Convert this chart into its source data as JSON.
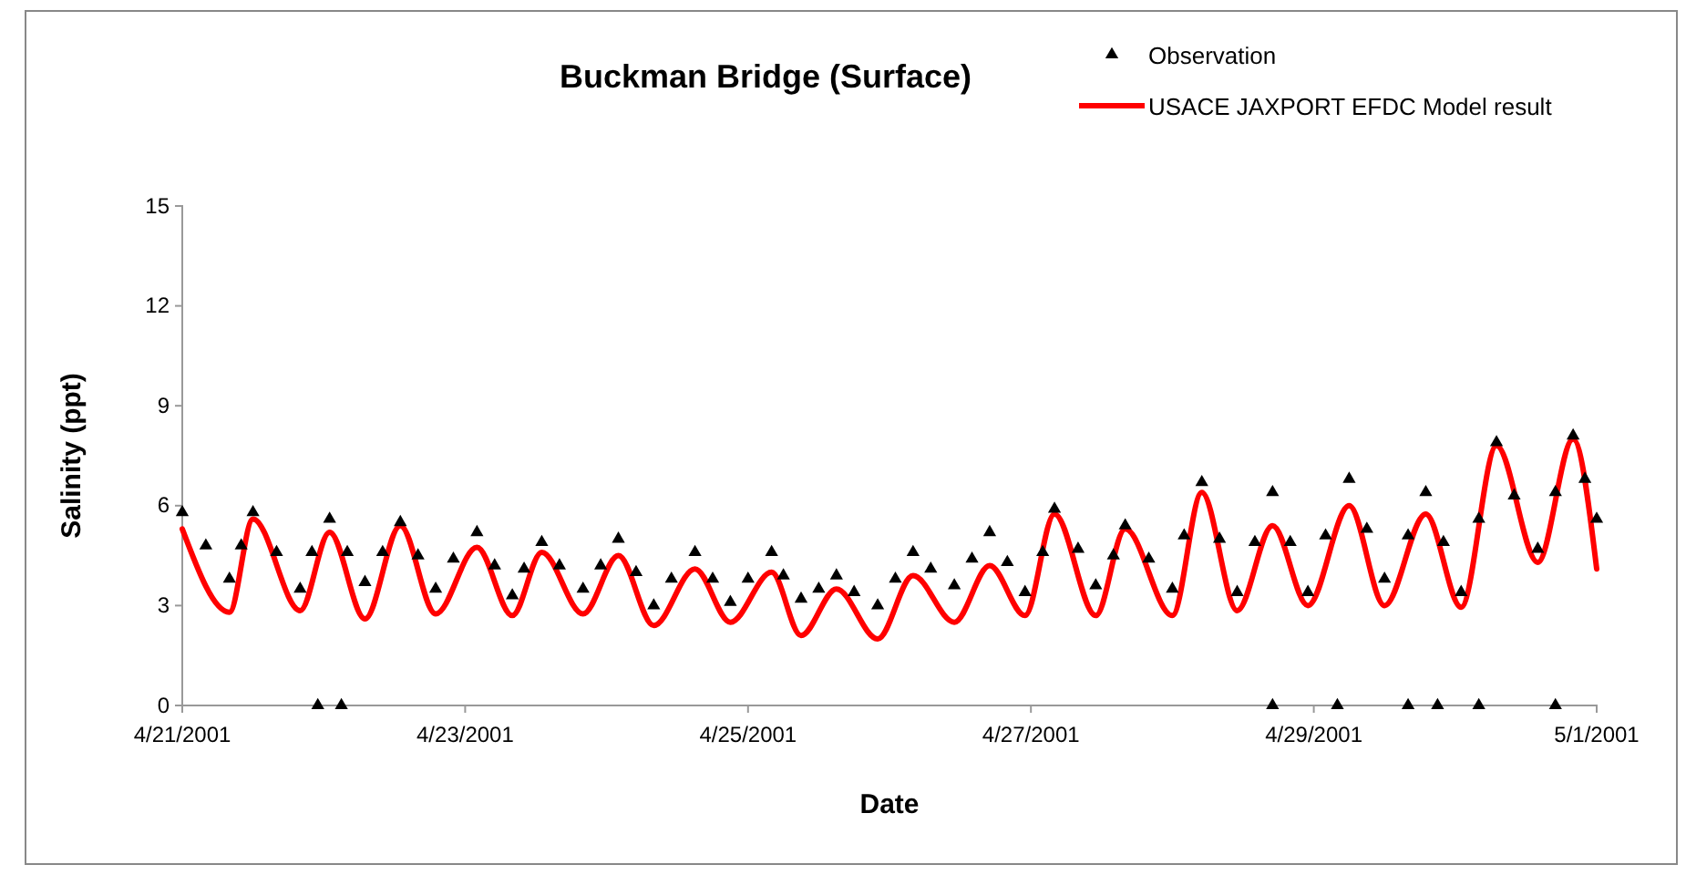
{
  "chart_data": {
    "type": "line",
    "title": "Buckman Bridge (Surface)",
    "xlabel": "Date",
    "ylabel": "Salinity (ppt)",
    "xlim": [
      "2001-04-21",
      "2001-05-01"
    ],
    "xticks": [
      {
        "value": "2001-04-21",
        "label": "4/21/2001"
      },
      {
        "value": "2001-04-23",
        "label": "4/23/2001"
      },
      {
        "value": "2001-04-25",
        "label": "4/25/2001"
      },
      {
        "value": "2001-04-27",
        "label": "4/27/2001"
      },
      {
        "value": "2001-04-29",
        "label": "4/29/2001"
      },
      {
        "value": "2001-05-01",
        "label": "5/1/2001"
      }
    ],
    "ylim": [
      0,
      15
    ],
    "yticks": [
      0,
      3,
      6,
      9,
      12,
      15
    ],
    "grid": false,
    "legend": "top right",
    "series": [
      {
        "name": "Observation",
        "type": "scatter",
        "marker": "triangle",
        "color": "#000000",
        "x": [
          "2001-04-21T00:00",
          "2001-04-21T04:00",
          "2001-04-21T08:00",
          "2001-04-21T10:00",
          "2001-04-21T12:00",
          "2001-04-21T16:00",
          "2001-04-21T20:00",
          "2001-04-21T22:00",
          "2001-04-22T01:00",
          "2001-04-22T04:00",
          "2001-04-22T07:00",
          "2001-04-22T10:00",
          "2001-04-22T13:00",
          "2001-04-22T16:00",
          "2001-04-22T19:00",
          "2001-04-22T22:00",
          "2001-04-23T02:00",
          "2001-04-23T05:00",
          "2001-04-23T08:00",
          "2001-04-23T10:00",
          "2001-04-23T13:00",
          "2001-04-23T16:00",
          "2001-04-23T20:00",
          "2001-04-23T23:00",
          "2001-04-24T02:00",
          "2001-04-24T05:00",
          "2001-04-24T08:00",
          "2001-04-24T11:00",
          "2001-04-24T15:00",
          "2001-04-24T18:00",
          "2001-04-24T21:00",
          "2001-04-25T00:00",
          "2001-04-25T04:00",
          "2001-04-25T06:00",
          "2001-04-25T09:00",
          "2001-04-25T12:00",
          "2001-04-25T15:00",
          "2001-04-25T18:00",
          "2001-04-25T22:00",
          "2001-04-26T01:00",
          "2001-04-26T04:00",
          "2001-04-26T07:00",
          "2001-04-26T11:00",
          "2001-04-26T14:00",
          "2001-04-26T17:00",
          "2001-04-26T20:00",
          "2001-04-26T23:00",
          "2001-04-27T02:00",
          "2001-04-27T04:00",
          "2001-04-27T08:00",
          "2001-04-27T11:00",
          "2001-04-27T14:00",
          "2001-04-27T16:00",
          "2001-04-27T20:00",
          "2001-04-28T00:00",
          "2001-04-28T02:00",
          "2001-04-28T05:00",
          "2001-04-28T08:00",
          "2001-04-28T11:00",
          "2001-04-28T14:00",
          "2001-04-28T17:00",
          "2001-04-28T20:00",
          "2001-04-28T23:00",
          "2001-04-29T02:00",
          "2001-04-29T06:00",
          "2001-04-29T09:00",
          "2001-04-29T12:00",
          "2001-04-29T16:00",
          "2001-04-29T19:00",
          "2001-04-29T22:00",
          "2001-04-30T01:00",
          "2001-04-30T04:00",
          "2001-04-30T07:00",
          "2001-04-30T10:00",
          "2001-04-30T14:00",
          "2001-04-30T17:00",
          "2001-04-30T20:00",
          "2001-04-30T22:00",
          "2001-05-01T00:00",
          "2001-04-21T23:00",
          "2001-04-22T03:00",
          "2001-04-28T17:00",
          "2001-04-29T04:00",
          "2001-04-29T16:00",
          "2001-04-29T21:00",
          "2001-04-30T04:00",
          "2001-04-30T17:00"
        ],
        "values": [
          5.8,
          4.8,
          3.8,
          4.8,
          5.8,
          4.6,
          3.5,
          4.6,
          5.6,
          4.6,
          3.7,
          4.6,
          5.5,
          4.5,
          3.5,
          4.4,
          5.2,
          4.2,
          3.3,
          4.1,
          4.9,
          4.2,
          3.5,
          4.2,
          5.0,
          4.0,
          3.0,
          3.8,
          4.6,
          3.8,
          3.1,
          3.8,
          4.6,
          3.9,
          3.2,
          3.5,
          3.9,
          3.4,
          3.0,
          3.8,
          4.6,
          4.1,
          3.6,
          4.4,
          5.2,
          4.3,
          3.4,
          4.6,
          5.9,
          4.7,
          3.6,
          4.5,
          5.4,
          4.4,
          3.5,
          5.1,
          6.7,
          5.0,
          3.4,
          4.9,
          6.4,
          4.9,
          3.4,
          5.1,
          6.8,
          5.3,
          3.8,
          5.1,
          6.4,
          4.9,
          3.4,
          5.6,
          7.9,
          6.3,
          4.7,
          6.4,
          8.1,
          6.8,
          5.6,
          0,
          0,
          0,
          0,
          0,
          0,
          0,
          0
        ]
      },
      {
        "name": "USACE JAXPORT EFDC Model result",
        "marker": "none",
        "color": "#ff0000",
        "x": [
          "2001-04-21T00:00",
          "2001-04-21T08:00",
          "2001-04-21T12:00",
          "2001-04-21T20:00",
          "2001-04-22T01:00",
          "2001-04-22T07:00",
          "2001-04-22T13:00",
          "2001-04-22T19:00",
          "2001-04-23T02:00",
          "2001-04-23T08:00",
          "2001-04-23T13:00",
          "2001-04-23T20:00",
          "2001-04-24T02:00",
          "2001-04-24T08:00",
          "2001-04-24T15:00",
          "2001-04-24T21:00",
          "2001-04-25T04:00",
          "2001-04-25T09:00",
          "2001-04-25T15:00",
          "2001-04-25T22:00",
          "2001-04-26T04:00",
          "2001-04-26T11:00",
          "2001-04-26T17:00",
          "2001-04-26T23:00",
          "2001-04-27T04:00",
          "2001-04-27T11:00",
          "2001-04-27T16:00",
          "2001-04-28T00:00",
          "2001-04-28T05:00",
          "2001-04-28T11:00",
          "2001-04-28T17:00",
          "2001-04-28T23:00",
          "2001-04-29T06:00",
          "2001-04-29T12:00",
          "2001-04-29T19:00",
          "2001-04-30T01:00",
          "2001-04-30T07:00",
          "2001-04-30T14:00",
          "2001-04-30T20:00",
          "2001-05-01T00:00"
        ],
        "values": [
          5.3,
          2.8,
          5.6,
          2.85,
          5.2,
          2.6,
          5.4,
          2.75,
          4.75,
          2.7,
          4.6,
          2.75,
          4.5,
          2.4,
          4.1,
          2.5,
          4.0,
          2.1,
          3.5,
          2.0,
          3.9,
          2.5,
          4.2,
          2.7,
          5.75,
          2.7,
          5.3,
          2.7,
          6.4,
          2.85,
          5.4,
          3.0,
          6.0,
          3.0,
          5.75,
          2.95,
          7.8,
          4.3,
          8.0,
          4.1
        ]
      }
    ]
  }
}
